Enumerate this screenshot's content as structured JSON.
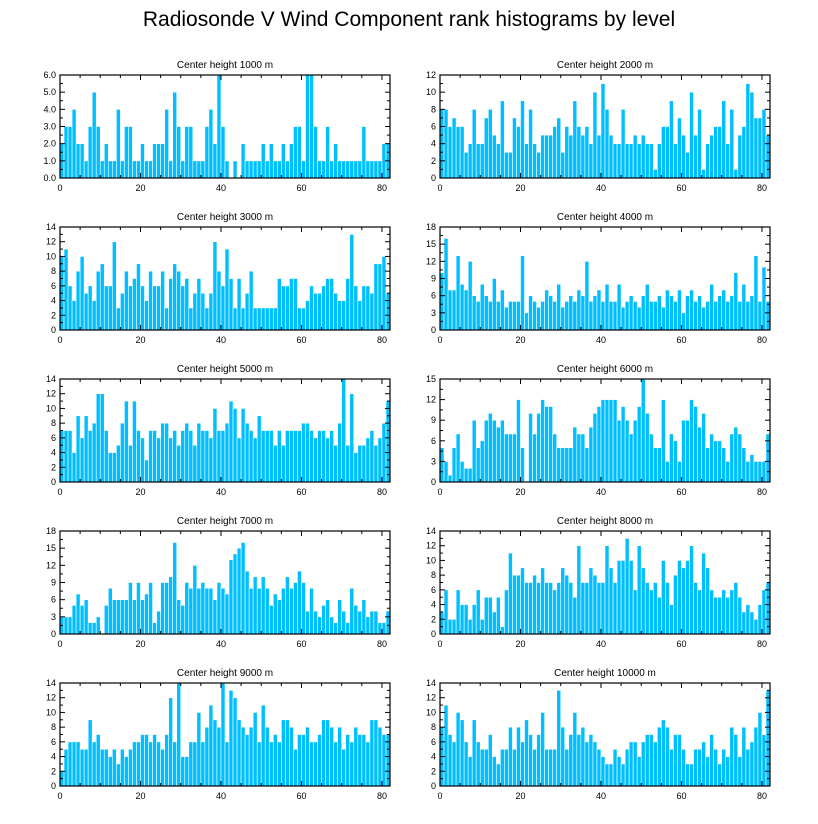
{
  "title": "Radiosonde V Wind Component rank histograms by level",
  "colors": {
    "bar": "#00bfff",
    "bar_edge": "#ffffff",
    "axis": "#000000"
  },
  "chart_data": [
    {
      "type": "bar",
      "title": "Center height 1000 m",
      "xlim": [
        0,
        82
      ],
      "ylim": [
        0,
        6
      ],
      "xticks": [
        0,
        20,
        40,
        60,
        80
      ],
      "yticks": [
        "0.0",
        "1.0",
        "2.0",
        "3.0",
        "4.0",
        "5.0",
        "6.0"
      ],
      "values": [
        2,
        3,
        3,
        4,
        2,
        2,
        1,
        3,
        5,
        3,
        1,
        2,
        1,
        1,
        4,
        1,
        3,
        3,
        1,
        1,
        2,
        1,
        1,
        2,
        2,
        2,
        4,
        1,
        5,
        3,
        1,
        3,
        3,
        1,
        1,
        1,
        3,
        4,
        2,
        6,
        3,
        1,
        0,
        1,
        0,
        2,
        1,
        1,
        1,
        1,
        2,
        1,
        2,
        1,
        1,
        2,
        1,
        2,
        3,
        3,
        1,
        6,
        6,
        3,
        1,
        1,
        3,
        1,
        2,
        1,
        1,
        1,
        1,
        1,
        1,
        3,
        1,
        1,
        1,
        1,
        2,
        2
      ]
    },
    {
      "type": "bar",
      "title": "Center height 2000 m",
      "xlim": [
        0,
        82
      ],
      "ylim": [
        0,
        12
      ],
      "xticks": [
        0,
        20,
        40,
        60,
        80
      ],
      "yticks": [
        "0",
        "2",
        "4",
        "6",
        "8",
        "10",
        "12"
      ],
      "values": [
        8,
        8,
        6,
        7,
        6,
        6,
        3,
        4,
        8,
        4,
        4,
        7,
        8,
        5,
        4,
        9,
        3,
        3,
        7,
        6,
        9,
        4,
        8,
        4,
        3,
        5,
        5,
        5,
        6,
        7,
        3,
        6,
        5,
        9,
        6,
        5,
        6,
        4,
        10,
        5,
        11,
        8,
        5,
        4,
        4,
        8,
        4,
        4,
        5,
        4,
        5,
        4,
        4,
        1,
        4,
        6,
        6,
        9,
        4,
        7,
        5,
        3,
        10,
        5,
        8,
        1,
        4,
        5,
        6,
        6,
        9,
        4,
        8,
        1,
        5,
        6,
        11,
        10,
        7,
        7,
        8,
        5
      ]
    },
    {
      "type": "bar",
      "title": "Center height 3000 m",
      "xlim": [
        0,
        82
      ],
      "ylim": [
        0,
        14
      ],
      "xticks": [
        0,
        20,
        40,
        60,
        80
      ],
      "yticks": [
        "0",
        "2",
        "4",
        "6",
        "8",
        "10",
        "12",
        "14"
      ],
      "values": [
        10,
        11,
        6,
        4,
        8,
        10,
        5,
        6,
        4,
        8,
        9,
        6,
        6,
        12,
        3,
        5,
        8,
        6,
        7,
        9,
        6,
        4,
        8,
        6,
        6,
        8,
        3,
        7,
        9,
        8,
        6,
        7,
        3,
        5,
        7,
        5,
        3,
        5,
        12,
        8,
        6,
        11,
        7,
        3,
        7,
        3,
        5,
        8,
        3,
        3,
        3,
        3,
        3,
        3,
        7,
        6,
        6,
        7,
        7,
        3,
        3,
        4,
        6,
        5,
        5,
        6,
        7,
        7,
        5,
        4,
        4,
        7,
        13,
        6,
        4,
        6,
        6,
        5,
        9,
        9,
        10,
        5
      ]
    },
    {
      "type": "bar",
      "title": "Center height 4000 m",
      "xlim": [
        0,
        82
      ],
      "ylim": [
        0,
        18
      ],
      "xticks": [
        0,
        20,
        40,
        60,
        80
      ],
      "yticks": [
        "0",
        "3",
        "6",
        "9",
        "12",
        "15",
        "18"
      ],
      "values": [
        10,
        16,
        7,
        7,
        13,
        8,
        7,
        12,
        6,
        5,
        8,
        6,
        5,
        9,
        5,
        7,
        4,
        5,
        5,
        5,
        13,
        3,
        6,
        5,
        4,
        5,
        7,
        6,
        5,
        8,
        4,
        5,
        6,
        5,
        7,
        6,
        12,
        5,
        6,
        7,
        5,
        8,
        5,
        5,
        8,
        4,
        5,
        6,
        5,
        4,
        6,
        8,
        5,
        5,
        6,
        4,
        7,
        6,
        5,
        7,
        3,
        6,
        7,
        5,
        6,
        4,
        5,
        8,
        5,
        6,
        7,
        5,
        6,
        10,
        5,
        8,
        5,
        6,
        13,
        5,
        11,
        5
      ]
    },
    {
      "type": "bar",
      "title": "Center height 5000 m",
      "xlim": [
        0,
        82
      ],
      "ylim": [
        0,
        14
      ],
      "xticks": [
        0,
        20,
        40,
        60,
        80
      ],
      "yticks": [
        "0",
        "2",
        "4",
        "6",
        "8",
        "10",
        "12",
        "14"
      ],
      "values": [
        7,
        7,
        7,
        4,
        9,
        6,
        9,
        7,
        8,
        12,
        12,
        7,
        4,
        4,
        5,
        8,
        11,
        5,
        11,
        7,
        6,
        3,
        7,
        7,
        6,
        8,
        8,
        6,
        7,
        5,
        7,
        8,
        7,
        5,
        8,
        7,
        7,
        6,
        10,
        7,
        7,
        8,
        11,
        10,
        6,
        10,
        8,
        7,
        6,
        9,
        7,
        7,
        7,
        5,
        7,
        5,
        7,
        7,
        7,
        7,
        8,
        8,
        7,
        6,
        7,
        7,
        6,
        7,
        5,
        8,
        14,
        5,
        12,
        4,
        5,
        5,
        6,
        7,
        5,
        6,
        8,
        11
      ]
    },
    {
      "type": "bar",
      "title": "Center height 6000 m",
      "xlim": [
        0,
        82
      ],
      "ylim": [
        0,
        15
      ],
      "xticks": [
        0,
        20,
        40,
        60,
        80
      ],
      "yticks": [
        "0",
        "3",
        "6",
        "9",
        "12",
        "15"
      ],
      "values": [
        5,
        3,
        1,
        5,
        7,
        3,
        2,
        2,
        9,
        5,
        6,
        9,
        10,
        9,
        8,
        9,
        7,
        7,
        7,
        12,
        5,
        0,
        10,
        7,
        10,
        12,
        11,
        11,
        7,
        5,
        5,
        5,
        5,
        8,
        7,
        7,
        5,
        8,
        10,
        11,
        12,
        12,
        12,
        12,
        9,
        11,
        9,
        7,
        9,
        11,
        15,
        10,
        7,
        5,
        5,
        12,
        3,
        7,
        6,
        3,
        9,
        9,
        12,
        11,
        8,
        10,
        5,
        7,
        6,
        6,
        5,
        3,
        7,
        8,
        7,
        5,
        3,
        4,
        3,
        3,
        3,
        7
      ]
    },
    {
      "type": "bar",
      "title": "Center height 7000 m",
      "xlim": [
        0,
        82
      ],
      "ylim": [
        0,
        18
      ],
      "xticks": [
        0,
        20,
        40,
        60,
        80
      ],
      "yticks": [
        "0",
        "3",
        "6",
        "9",
        "12",
        "15",
        "18"
      ],
      "values": [
        3,
        3,
        3,
        5,
        7,
        5,
        6,
        2,
        2,
        3,
        0,
        5,
        8,
        6,
        6,
        6,
        6,
        9,
        6,
        9,
        6,
        7,
        9,
        2,
        4,
        9,
        9,
        10,
        16,
        6,
        5,
        9,
        8,
        12,
        8,
        9,
        8,
        8,
        6,
        9,
        8,
        7,
        13,
        14,
        15,
        16,
        11,
        8,
        10,
        8,
        10,
        8,
        5,
        7,
        6,
        8,
        10,
        8,
        9,
        11,
        9,
        4,
        8,
        4,
        3,
        5,
        6,
        3,
        2,
        6,
        4,
        2,
        8,
        5,
        4,
        6,
        3,
        4,
        4,
        2,
        2,
        4
      ]
    },
    {
      "type": "bar",
      "title": "Center height 8000 m",
      "xlim": [
        0,
        82
      ],
      "ylim": [
        0,
        14
      ],
      "xticks": [
        0,
        20,
        40,
        60,
        80
      ],
      "yticks": [
        "0",
        "2",
        "4",
        "6",
        "8",
        "10",
        "12",
        "14"
      ],
      "values": [
        3,
        6,
        2,
        2,
        6,
        4,
        4,
        2,
        4,
        6,
        2,
        5,
        5,
        3,
        5,
        1,
        6,
        11,
        8,
        8,
        9,
        7,
        7,
        8,
        7,
        9,
        7,
        7,
        6,
        7,
        9,
        8,
        7,
        5,
        12,
        7,
        7,
        9,
        8,
        7,
        7,
        12,
        9,
        7,
        10,
        10,
        13,
        10,
        6,
        12,
        9,
        7,
        6,
        7,
        5,
        10,
        7,
        4,
        8,
        10,
        9,
        10,
        12,
        7,
        6,
        11,
        9,
        6,
        5,
        5,
        6,
        5,
        6,
        7,
        5,
        3,
        4,
        3,
        2,
        4,
        6,
        7
      ]
    },
    {
      "type": "bar",
      "title": "Center height 9000 m",
      "xlim": [
        0,
        82
      ],
      "ylim": [
        0,
        14
      ],
      "xticks": [
        0,
        20,
        40,
        60,
        80
      ],
      "yticks": [
        "0",
        "2",
        "4",
        "6",
        "8",
        "10",
        "12",
        "14"
      ],
      "values": [
        2,
        5,
        6,
        6,
        6,
        5,
        5,
        9,
        6,
        7,
        5,
        5,
        4,
        5,
        3,
        5,
        4,
        5,
        6,
        6,
        7,
        7,
        6,
        7,
        6,
        5,
        7,
        12,
        6,
        14,
        4,
        4,
        6,
        6,
        10,
        6,
        8,
        11,
        9,
        8,
        14,
        6,
        13,
        12,
        9,
        8,
        7,
        8,
        10,
        6,
        11,
        8,
        6,
        7,
        6,
        9,
        9,
        8,
        5,
        7,
        7,
        8,
        6,
        6,
        7,
        9,
        9,
        8,
        6,
        8,
        5,
        7,
        6,
        8,
        7,
        7,
        6,
        9,
        9,
        8,
        7,
        7
      ]
    },
    {
      "type": "bar",
      "title": "Center height 10000 m",
      "xlim": [
        0,
        82
      ],
      "ylim": [
        0,
        14
      ],
      "xticks": [
        0,
        20,
        40,
        60,
        80
      ],
      "yticks": [
        "0",
        "2",
        "4",
        "6",
        "8",
        "10",
        "12",
        "14"
      ],
      "values": [
        8,
        11,
        7,
        6,
        10,
        9,
        6,
        4,
        9,
        6,
        5,
        5,
        7,
        4,
        3,
        5,
        5,
        8,
        5,
        8,
        6,
        9,
        7,
        5,
        7,
        10,
        5,
        5,
        5,
        13,
        8,
        5,
        7,
        10,
        7,
        8,
        6,
        7,
        6,
        5,
        4,
        3,
        3,
        5,
        4,
        3,
        5,
        6,
        6,
        4,
        6,
        7,
        7,
        6,
        8,
        9,
        8,
        5,
        7,
        7,
        5,
        3,
        3,
        5,
        5,
        6,
        4,
        7,
        5,
        3,
        5,
        4,
        8,
        7,
        4,
        8,
        5,
        6,
        8,
        10,
        7,
        13
      ]
    }
  ]
}
